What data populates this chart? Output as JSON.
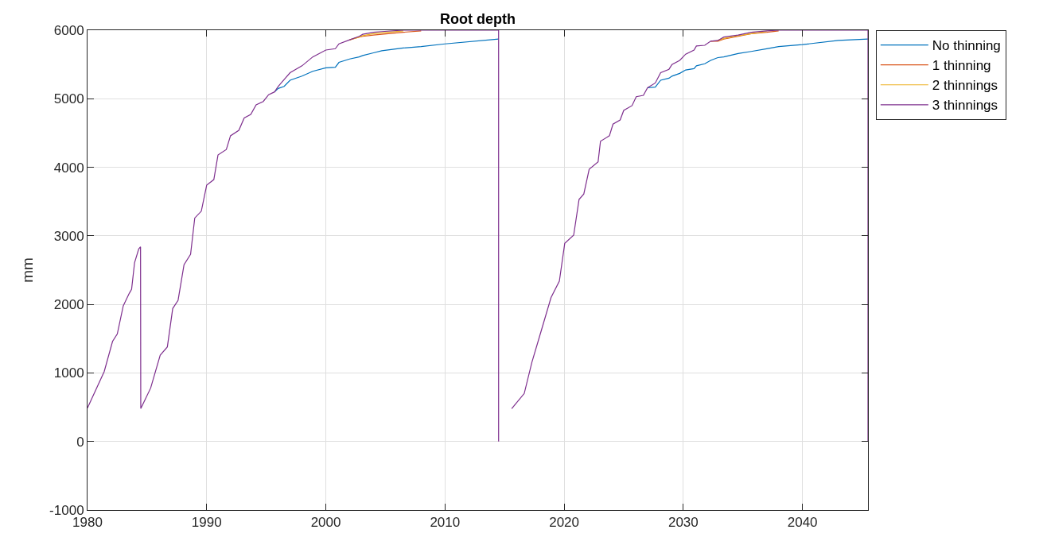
{
  "chart_data": {
    "type": "line",
    "title": "Root depth",
    "ylabel": "mm",
    "x": [
      1980.0,
      1981.4,
      1982.1,
      1982.5,
      1983.0,
      1983.5,
      1983.7,
      1983.95,
      1984.3,
      1984.45,
      1984.47,
      1985.3,
      1986.1,
      1986.7,
      1987.15,
      1987.6,
      1988.1,
      1988.65,
      1989.0,
      1989.55,
      1990.0,
      1990.6,
      1990.95,
      1991.65,
      1992.0,
      1992.7,
      1993.15,
      1993.7,
      1994.15,
      1994.75,
      1995.2,
      1995.7,
      1996.0,
      1996.5,
      1997.0,
      1998.0,
      1998.9,
      2000.0,
      2000.8,
      2001.1,
      2002.0,
      2002.8,
      2003.1,
      2004.0,
      2004.7,
      2006.5,
      2008.0,
      2010.0,
      2014.5,
      2014.5,
      2015.0,
      2015.6,
      2016.65,
      2017.3,
      2018.0,
      2018.9,
      2019.6,
      2020.05,
      2020.8,
      2021.25,
      2021.65,
      2022.1,
      2022.85,
      2023.05,
      2023.8,
      2024.1,
      2024.7,
      2025.0,
      2025.7,
      2026.05,
      2026.65,
      2027.0,
      2027.65,
      2028.1,
      2028.8,
      2029.05,
      2029.7,
      2030.2,
      2030.9,
      2031.1,
      2031.8,
      2032.3,
      2032.9,
      2033.4,
      2034.6,
      2035.7,
      2037.0,
      2038.0,
      2040.0,
      2043.0,
      2045.5,
      2045.5
    ],
    "series": [
      {
        "name": "No thinning",
        "color": "#0072bd",
        "values": [
          null,
          null,
          null,
          null,
          null,
          null,
          null,
          null,
          null,
          null,
          null,
          null,
          null,
          null,
          null,
          null,
          null,
          null,
          null,
          null,
          null,
          null,
          null,
          null,
          null,
          null,
          null,
          null,
          null,
          null,
          null,
          5100,
          5150,
          5180,
          5270,
          5330,
          5400,
          5450,
          5460,
          5530,
          5580,
          5610,
          5630,
          5670,
          5700,
          5740,
          5760,
          5800,
          5870,
          null,
          null,
          null,
          null,
          null,
          null,
          null,
          null,
          null,
          null,
          null,
          null,
          null,
          null,
          null,
          null,
          null,
          null,
          null,
          null,
          null,
          null,
          5160,
          5170,
          5270,
          5300,
          5330,
          5370,
          5420,
          5440,
          5480,
          5510,
          5560,
          5600,
          5610,
          5660,
          5690,
          5730,
          5760,
          5790,
          5850,
          5870,
          null
        ]
      },
      {
        "name": "1 thinning",
        "color": "#d95319",
        "values": [
          null,
          null,
          null,
          null,
          null,
          null,
          null,
          null,
          null,
          null,
          null,
          null,
          null,
          null,
          null,
          null,
          null,
          null,
          null,
          null,
          null,
          null,
          null,
          null,
          null,
          null,
          null,
          null,
          null,
          null,
          null,
          null,
          null,
          null,
          null,
          null,
          null,
          null,
          null,
          null,
          5860,
          5900,
          5910,
          5930,
          5940,
          5970,
          5990,
          null,
          null,
          null,
          null,
          null,
          null,
          null,
          null,
          null,
          null,
          null,
          null,
          null,
          null,
          null,
          null,
          null,
          null,
          null,
          null,
          null,
          null,
          null,
          null,
          null,
          null,
          null,
          null,
          null,
          null,
          null,
          null,
          null,
          null,
          5840,
          5840,
          5870,
          5910,
          5950,
          5970,
          5990,
          null,
          null,
          null,
          null
        ]
      },
      {
        "name": "2 thinnings",
        "color": "#edb120",
        "values": [
          null,
          null,
          null,
          null,
          null,
          null,
          null,
          null,
          null,
          null,
          null,
          null,
          null,
          null,
          null,
          null,
          null,
          null,
          null,
          null,
          null,
          null,
          null,
          null,
          null,
          null,
          null,
          null,
          null,
          null,
          null,
          null,
          null,
          null,
          null,
          null,
          null,
          null,
          null,
          null,
          5860,
          5900,
          5920,
          5950,
          5960,
          5990,
          null,
          null,
          null,
          null,
          null,
          null,
          null,
          null,
          null,
          null,
          null,
          null,
          null,
          null,
          null,
          null,
          null,
          null,
          null,
          null,
          null,
          null,
          null,
          null,
          null,
          null,
          null,
          null,
          null,
          null,
          null,
          null,
          null,
          null,
          null,
          null,
          5850,
          5880,
          5920,
          5950,
          5980,
          null,
          null,
          null,
          null,
          null
        ]
      },
      {
        "name": "3 thinnings",
        "color": "#7e2f8e",
        "values": [
          490,
          1020,
          1460,
          1570,
          1980,
          2160,
          2220,
          2610,
          2810,
          2840,
          480,
          780,
          1260,
          1380,
          1940,
          2060,
          2580,
          2730,
          3260,
          3360,
          3740,
          3820,
          4180,
          4260,
          4460,
          4540,
          4720,
          4770,
          4910,
          4960,
          5060,
          5100,
          5180,
          5280,
          5380,
          5480,
          5610,
          5710,
          5730,
          5800,
          5860,
          5910,
          5940,
          5970,
          5980,
          6000,
          6000,
          6000,
          6000,
          0,
          null,
          480,
          700,
          1160,
          1570,
          2100,
          2340,
          2890,
          3010,
          3530,
          3610,
          3970,
          4080,
          4380,
          4460,
          4630,
          4690,
          4830,
          4900,
          5030,
          5050,
          5160,
          5230,
          5380,
          5430,
          5500,
          5560,
          5650,
          5710,
          5770,
          5780,
          5840,
          5850,
          5900,
          5930,
          5970,
          5990,
          6000,
          6000,
          6000,
          6000,
          0
        ]
      }
    ],
    "xlim": [
      1980,
      2045.5
    ],
    "xticks": [
      1980,
      1990,
      2000,
      2010,
      2020,
      2030,
      2040
    ],
    "ylim": [
      -1000,
      6000
    ],
    "yticks": [
      -1000,
      0,
      1000,
      2000,
      3000,
      4000,
      5000,
      6000
    ],
    "grid": true,
    "legend": "top right",
    "marker": "none",
    "line_style": "solid"
  }
}
